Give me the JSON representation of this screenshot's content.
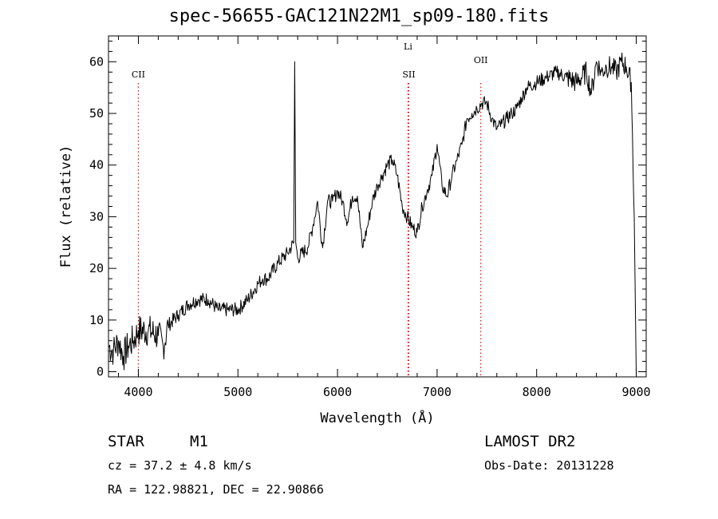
{
  "header": {
    "title": "spec-56655-GAC121N22M1_sp09-180.fits"
  },
  "info": {
    "object_class": "STAR",
    "subclass": "M1",
    "survey": "LAMOST DR2",
    "cz": "cz = 37.2 ± 4.8 km/s",
    "obs_date": "Obs-Date: 20131228",
    "coords": "RA = 122.98821, DEC =  22.90866"
  },
  "chart_data": {
    "type": "line",
    "title": "spec-56655-GAC121N22M1_sp09-180.fits",
    "xlabel": "Wavelength (Å)",
    "ylabel": "Flux (relative)",
    "xlim": [
      3700,
      9100
    ],
    "ylim": [
      -1,
      65
    ],
    "x_ticks": [
      4000,
      5000,
      6000,
      7000,
      8000,
      9000
    ],
    "y_ticks": [
      0,
      10,
      20,
      30,
      40,
      50,
      60
    ],
    "grid": false,
    "line_color": "#000000",
    "annotation_color": "#ff0000",
    "series": [
      {
        "wavelength": [
          3700,
          3750,
          3800,
          3850,
          3900,
          3950,
          4000,
          4100,
          4200,
          4250,
          4300,
          4400,
          4500,
          4600,
          4700,
          4800,
          4900,
          5000,
          5100,
          5200,
          5250,
          5300,
          5400,
          5500,
          5560,
          5570,
          5580,
          5600,
          5700,
          5750,
          5800,
          5850,
          5900,
          5950,
          6000,
          6050,
          6100,
          6150,
          6200,
          6250,
          6300,
          6350,
          6400,
          6450,
          6500,
          6550,
          6600,
          6650,
          6700,
          6750,
          6800,
          6850,
          6900,
          6950,
          7000,
          7050,
          7100,
          7150,
          7200,
          7250,
          7300,
          7350,
          7400,
          7450,
          7500,
          7550,
          7600,
          7650,
          7700,
          7750,
          7800,
          7850,
          7900,
          8000,
          8100,
          8200,
          8300,
          8400,
          8500,
          8550,
          8600,
          8650,
          8700,
          8750,
          8800,
          8850,
          8900,
          8950,
          8980
        ],
        "flux": [
          5,
          4,
          6,
          3,
          5,
          6,
          8,
          8,
          7,
          5,
          9,
          11,
          13,
          14,
          14,
          12,
          12,
          12,
          14,
          17,
          18,
          18,
          21,
          23,
          25,
          60,
          25,
          22,
          24,
          28,
          33,
          24,
          33,
          33,
          35,
          33,
          29,
          34,
          34,
          24,
          28,
          33,
          36,
          38,
          40,
          41,
          38,
          32,
          30,
          28,
          27,
          32,
          35,
          38,
          44,
          36,
          34,
          38,
          41,
          44,
          49,
          50,
          51,
          52,
          52,
          49,
          47,
          48,
          49,
          50,
          51,
          53,
          55,
          56,
          57,
          58,
          57,
          56,
          58,
          54,
          60,
          58,
          59,
          59,
          58,
          60,
          59,
          56,
          30
        ]
      }
    ],
    "annotations": [
      {
        "label": "CII",
        "x": 4000,
        "position": "lower"
      },
      {
        "label": "Li",
        "x": 6708,
        "position": "upper"
      },
      {
        "label": "SII",
        "x": 6716,
        "position": "lower"
      },
      {
        "label": "OII",
        "x": 7439,
        "position": "middle"
      }
    ]
  }
}
